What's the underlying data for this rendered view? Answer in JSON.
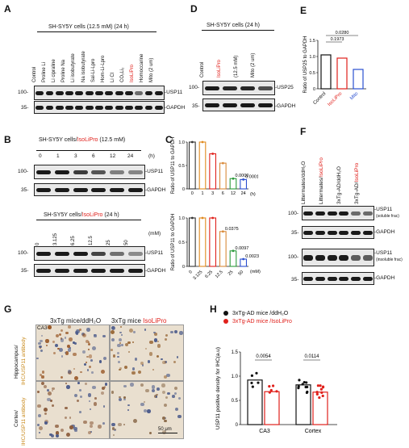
{
  "panels": {
    "A": {
      "letter": "A",
      "header": "SH-SY5Y cells (12.5 mM)  (24 h)",
      "lanes": [
        "Control",
        "Proline Li",
        "Li cipraline",
        "Proline Na",
        "Li isobutyrate",
        "Na isobutyrate",
        "Sal-Li-Lpro",
        "Hom-Li-Lpro",
        "Li Cl",
        "CO₃Li₂",
        "IsoLiPro",
        "Homoccarine",
        "Mito (2 um)"
      ],
      "highlight_lane": "IsoLiPro",
      "markers": [
        "100-",
        "35-"
      ],
      "bands": [
        "-USP11",
        "-GAPDH"
      ]
    },
    "B": {
      "letter": "B",
      "header_top_prefix": "SH-SY5Y cells/",
      "header_top_red": "IsoLiPro",
      "header_top_suffix": " (12.5 mM)",
      "time_points": [
        "0",
        "1",
        "3",
        "6",
        "12",
        "24"
      ],
      "time_unit": "(h)",
      "header_bottom_prefix": "SH-SY5Y cells/",
      "header_bottom_red": "IsoLiPro",
      "header_bottom_suffix": " (24 h)",
      "doses": [
        "0",
        "3.125",
        "6.25",
        "12.5",
        "25",
        "50"
      ],
      "dose_unit": "(mM)",
      "markers": [
        "100-",
        "35-",
        "100-",
        "35-"
      ],
      "bands": [
        "-USP11",
        "-GAPDH",
        "-USP11",
        "-GAPDH"
      ]
    },
    "C": {
      "letter": "C"
    },
    "D": {
      "letter": "D",
      "header": "SH-SY5Y cells (24 h)",
      "lanes": [
        "Control",
        "IsoLiPro",
        "(12.5 mM)",
        "Mito (2 um)"
      ],
      "markers": [
        "100-",
        "35-"
      ],
      "bands": [
        "-USP25",
        "-GAPDH"
      ]
    },
    "E": {
      "letter": "E"
    },
    "F": {
      "letter": "F",
      "lanes": [
        "Littermates/ddH₂O",
        "Littermates/IsoLiPro",
        "3xTg-AD/ddH₂O",
        "3xTg-AD/IsoLiPro"
      ],
      "markers": [
        "100-",
        "35-",
        "100-",
        "35-"
      ],
      "bands": [
        "-USP11",
        "(soluble frac)",
        "-GAPDH",
        "-USP11",
        "(insoluble frac)",
        "-GAPDH"
      ]
    },
    "G": {
      "letter": "G",
      "col1": "3xTg mice/ddH₂O",
      "col2_prefix": "3xTg mice ",
      "col2_red": "IsoLiPro",
      "row1_black": "Hippocampus/",
      "row1_brown": "IHC/USP11 antibody",
      "row2_black": "Cortex/",
      "row2_brown": "IHC/USP11 antibody",
      "region_label": "CA3",
      "scale_bar": "50 μm"
    },
    "H": {
      "letter": "H"
    }
  },
  "chart_data": [
    {
      "id": "C-top",
      "type": "line",
      "ylabel": "Ratio of USP11 to GAPDH",
      "xlabel": "(h)",
      "categories": [
        "0",
        "1",
        "3",
        "6",
        "12",
        "24"
      ],
      "values": [
        1.0,
        1.0,
        0.75,
        0.55,
        0.22,
        0.2
      ],
      "ylim": [
        0,
        1.0
      ],
      "yticks": [
        0,
        0.5,
        1.0
      ],
      "colors": [
        "#333333",
        "#e08a1e",
        "#e0201b",
        "#d98a3a",
        "#2a9a3a",
        "#2a4fd0"
      ],
      "annotations": [
        {
          "category": "12",
          "text": "0.0000"
        },
        {
          "category": "24",
          "text": "0.0001"
        }
      ]
    },
    {
      "id": "C-bottom",
      "type": "line",
      "ylabel": "Ratio of USP11 to GAPDH",
      "xlabel": "(mM)",
      "categories": [
        "0",
        "3.125",
        "6.25",
        "12.5",
        "25",
        "50"
      ],
      "values": [
        1.0,
        1.0,
        1.0,
        0.72,
        0.32,
        0.15
      ],
      "ylim": [
        0,
        1.0
      ],
      "yticks": [
        0,
        0.5,
        1.0
      ],
      "colors": [
        "#333333",
        "#e08a1e",
        "#e0201b",
        "#d98a3a",
        "#2a9a3a",
        "#2a4fd0"
      ],
      "annotations": [
        {
          "category": "12.5",
          "text": "0.0375"
        },
        {
          "category": "25",
          "text": "0.0097"
        },
        {
          "category": "50",
          "text": "0.0023"
        }
      ]
    },
    {
      "id": "E",
      "type": "bar",
      "ylabel": "Ratio of USP25 to GAPDH",
      "categories": [
        "Control",
        "IsoLiPro",
        "Mito"
      ],
      "category_colors": [
        "#111111",
        "#e0201b",
        "#2a4fd0"
      ],
      "values": [
        1.05,
        0.95,
        0.6
      ],
      "ylim": [
        0,
        1.5
      ],
      "yticks": [
        0,
        0.5,
        1.0,
        1.5
      ],
      "annotations": [
        "0.0280",
        "0.1973"
      ]
    },
    {
      "id": "H",
      "type": "bar",
      "ylabel": "USP11 positive density for IHC(a.u)",
      "ylim": [
        0,
        1.5
      ],
      "yticks": [
        0,
        0.5,
        1.0,
        1.5
      ],
      "categories": [
        "CA3",
        "Cortex"
      ],
      "series": [
        {
          "name": "3xTg-AD mice /ddH₂O",
          "color": "#111111",
          "values": [
            0.92,
            0.82
          ]
        },
        {
          "name": "3xTg-AD mice /IsoLiPro",
          "color": "#e0201b",
          "values": [
            0.68,
            0.67
          ]
        }
      ],
      "annotations": [
        "0.0054",
        "0.0114"
      ]
    }
  ]
}
